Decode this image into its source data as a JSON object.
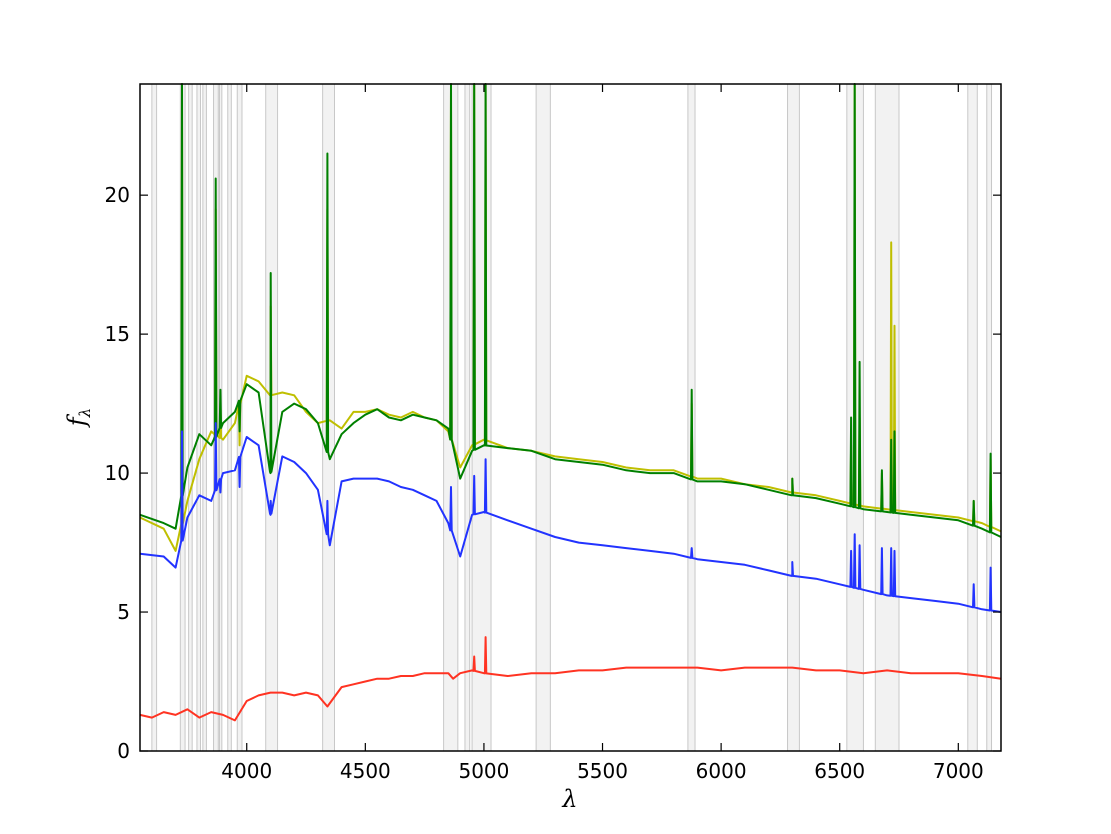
{
  "chart_data": {
    "type": "line",
    "title": "",
    "xlabel": "λ",
    "ylabel": "f",
    "ylabel_subscript": "λ",
    "xlim": [
      3550,
      7180
    ],
    "ylim": [
      0,
      24
    ],
    "xticks": [
      4000,
      4500,
      5000,
      5500,
      6000,
      6500,
      7000
    ],
    "yticks": [
      0,
      5,
      10,
      15,
      20
    ],
    "grid": false,
    "masked_bands": [
      [
        3600,
        3620
      ],
      [
        3720,
        3740
      ],
      [
        3755,
        3770
      ],
      [
        3790,
        3805
      ],
      [
        3815,
        3830
      ],
      [
        3860,
        3880
      ],
      [
        3885,
        3895
      ],
      [
        3920,
        3935
      ],
      [
        3960,
        3980
      ],
      [
        4080,
        4130
      ],
      [
        4320,
        4370
      ],
      [
        4830,
        4890
      ],
      [
        4920,
        4940
      ],
      [
        4950,
        5030
      ],
      [
        5220,
        5280
      ],
      [
        5860,
        5890
      ],
      [
        6280,
        6330
      ],
      [
        6530,
        6600
      ],
      [
        6650,
        6750
      ],
      [
        7040,
        7080
      ],
      [
        7120,
        7140
      ]
    ],
    "series": [
      {
        "color": "#bfbf00",
        "x": [
          3550,
          3650,
          3700,
          3750,
          3800,
          3850,
          3900,
          3950,
          4000,
          4050,
          4100,
          4150,
          4200,
          4250,
          4300,
          4350,
          4400,
          4450,
          4500,
          4550,
          4600,
          4650,
          4700,
          4750,
          4800,
          4850,
          4900,
          4950,
          5000,
          5100,
          5200,
          5300,
          5400,
          5500,
          5600,
          5700,
          5800,
          5900,
          6000,
          6100,
          6200,
          6300,
          6400,
          6500,
          6600,
          6700,
          6800,
          6900,
          7000,
          7100,
          7180
        ],
        "y": [
          8.4,
          8.0,
          7.2,
          9.0,
          10.5,
          11.5,
          11.2,
          11.8,
          13.5,
          13.3,
          12.8,
          12.9,
          12.8,
          12.2,
          11.8,
          11.9,
          11.6,
          12.2,
          12.2,
          12.3,
          12.1,
          12.0,
          12.2,
          12.0,
          11.9,
          11.5,
          10.2,
          11.0,
          11.2,
          10.9,
          10.8,
          10.6,
          10.5,
          10.4,
          10.2,
          10.1,
          10.1,
          9.8,
          9.8,
          9.6,
          9.5,
          9.3,
          9.2,
          9.0,
          8.8,
          8.7,
          8.6,
          8.5,
          8.4,
          8.2,
          7.9
        ]
      },
      {
        "color": "#008000",
        "x": [
          3550,
          3650,
          3700,
          3750,
          3800,
          3850,
          3900,
          3950,
          4000,
          4050,
          4100,
          4150,
          4200,
          4250,
          4300,
          4350,
          4400,
          4450,
          4500,
          4550,
          4600,
          4650,
          4700,
          4750,
          4800,
          4850,
          4900,
          4950,
          5000,
          5100,
          5200,
          5300,
          5400,
          5500,
          5600,
          5700,
          5800,
          5900,
          6000,
          6100,
          6200,
          6300,
          6400,
          6500,
          6600,
          6700,
          6800,
          6900,
          7000,
          7100,
          7180
        ],
        "y": [
          8.5,
          8.2,
          8.0,
          10.2,
          11.4,
          11.0,
          11.8,
          12.2,
          13.2,
          12.9,
          10.0,
          12.2,
          12.5,
          12.3,
          11.8,
          10.5,
          11.4,
          11.8,
          12.1,
          12.3,
          12.0,
          11.9,
          12.1,
          12.0,
          11.9,
          11.6,
          9.8,
          10.8,
          11.0,
          10.9,
          10.8,
          10.5,
          10.4,
          10.3,
          10.1,
          10.0,
          10.0,
          9.7,
          9.7,
          9.6,
          9.4,
          9.2,
          9.1,
          8.9,
          8.7,
          8.6,
          8.5,
          8.4,
          8.3,
          8.0,
          7.7
        ]
      },
      {
        "color": "#2233ff",
        "x": [
          3550,
          3650,
          3700,
          3750,
          3800,
          3850,
          3900,
          3950,
          4000,
          4050,
          4100,
          4150,
          4200,
          4250,
          4300,
          4350,
          4400,
          4450,
          4500,
          4550,
          4600,
          4650,
          4700,
          4750,
          4800,
          4850,
          4900,
          4950,
          5000,
          5100,
          5200,
          5300,
          5400,
          5500,
          5600,
          5700,
          5800,
          5900,
          6000,
          6100,
          6200,
          6300,
          6400,
          6500,
          6600,
          6700,
          6800,
          6900,
          7000,
          7100,
          7180
        ],
        "y": [
          7.1,
          7.0,
          6.6,
          8.4,
          9.2,
          9.0,
          10.0,
          10.1,
          11.3,
          11.0,
          8.5,
          10.6,
          10.4,
          10.0,
          9.4,
          7.4,
          9.7,
          9.8,
          9.8,
          9.8,
          9.7,
          9.5,
          9.4,
          9.2,
          9.0,
          8.2,
          7.0,
          8.5,
          8.6,
          8.3,
          8.0,
          7.7,
          7.5,
          7.4,
          7.3,
          7.2,
          7.1,
          6.9,
          6.8,
          6.7,
          6.5,
          6.3,
          6.2,
          6.0,
          5.8,
          5.6,
          5.5,
          5.4,
          5.3,
          5.1,
          5.0
        ]
      },
      {
        "color": "#ff3322",
        "x": [
          3550,
          3600,
          3650,
          3700,
          3750,
          3800,
          3850,
          3900,
          3950,
          4000,
          4050,
          4100,
          4150,
          4200,
          4250,
          4300,
          4340,
          4400,
          4450,
          4500,
          4550,
          4600,
          4650,
          4700,
          4750,
          4800,
          4850,
          4870,
          4900,
          4950,
          5000,
          5100,
          5200,
          5300,
          5400,
          5500,
          5600,
          5700,
          5800,
          5900,
          6000,
          6100,
          6200,
          6300,
          6400,
          6500,
          6600,
          6700,
          6800,
          6900,
          7000,
          7100,
          7180
        ],
        "y": [
          1.3,
          1.2,
          1.4,
          1.3,
          1.5,
          1.2,
          1.4,
          1.3,
          1.1,
          1.8,
          2.0,
          2.1,
          2.1,
          2.0,
          2.1,
          2.0,
          1.6,
          2.3,
          2.4,
          2.5,
          2.6,
          2.6,
          2.7,
          2.7,
          2.8,
          2.8,
          2.8,
          2.6,
          2.8,
          2.9,
          2.8,
          2.7,
          2.8,
          2.8,
          2.9,
          2.9,
          3.0,
          3.0,
          3.0,
          3.0,
          2.9,
          3.0,
          3.0,
          3.0,
          2.9,
          2.9,
          2.8,
          2.9,
          2.8,
          2.8,
          2.8,
          2.7,
          2.6
        ]
      }
    ],
    "emission_lines": [
      {
        "x": 3727,
        "green": 24.5,
        "yellow": 24.5,
        "blue": 11.5
      },
      {
        "x": 3869,
        "green": 20.6,
        "yellow": 19.5,
        "blue": 11.8
      },
      {
        "x": 3889,
        "green": 13.0,
        "yellow": 12.5,
        "blue": 9.3
      },
      {
        "x": 3970,
        "green": 11.5,
        "yellow": 11.0,
        "blue": 9.5
      },
      {
        "x": 4101,
        "green": 17.2,
        "yellow": 16.0,
        "blue": 9.0
      },
      {
        "x": 4340,
        "green": 21.5,
        "yellow": 19.5,
        "blue": 9.0
      },
      {
        "x": 4861,
        "green": 24.5,
        "yellow": 24.5,
        "blue": 9.5
      },
      {
        "x": 4959,
        "green": 24.5,
        "yellow": 24.5,
        "blue": 9.9,
        "red": 3.4
      },
      {
        "x": 5007,
        "green": 24.5,
        "yellow": 24.5,
        "blue": 10.5,
        "red": 4.1
      },
      {
        "x": 5876,
        "green": 13.0,
        "yellow": 12.5,
        "blue": 7.3
      },
      {
        "x": 6300,
        "green": 9.8,
        "yellow": 9.8,
        "blue": 6.8
      },
      {
        "x": 6548,
        "green": 12.0,
        "yellow": 11.0,
        "blue": 7.2
      },
      {
        "x": 6563,
        "green": 24.5,
        "yellow": 24.5,
        "blue": 7.8
      },
      {
        "x": 6584,
        "green": 14.0,
        "yellow": 12.0,
        "blue": 7.4
      },
      {
        "x": 6678,
        "green": 10.1,
        "yellow": 10.0,
        "blue": 7.3
      },
      {
        "x": 6717,
        "green": 11.2,
        "yellow": 18.3,
        "blue": 7.3
      },
      {
        "x": 6731,
        "green": 11.5,
        "yellow": 15.3,
        "blue": 7.2
      },
      {
        "x": 7065,
        "green": 9.0,
        "yellow": 9.0,
        "blue": 6.0
      },
      {
        "x": 7136,
        "green": 10.7,
        "yellow": 10.5,
        "blue": 6.6
      }
    ]
  }
}
